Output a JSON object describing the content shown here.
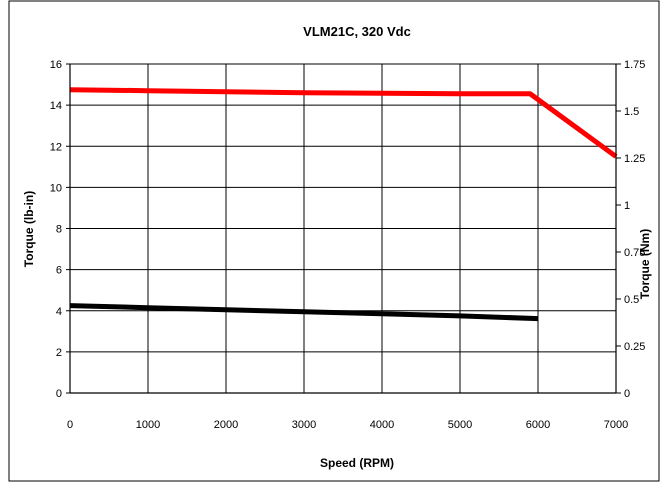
{
  "chart_data": {
    "type": "line",
    "title": "VLM21C, 320 Vdc",
    "xlabel": "Speed  (RPM)",
    "ylabel": "Torque (lb-in)",
    "y2label": "Torque (Nm)",
    "xlim": [
      0,
      7000
    ],
    "ylim": [
      0,
      16
    ],
    "y2lim": [
      0,
      1.75
    ],
    "x_ticks": [
      "0",
      "1000",
      "2000",
      "3000",
      "4000",
      "5000",
      "6000",
      "7000"
    ],
    "y_ticks": [
      "0",
      "2",
      "4",
      "6",
      "8",
      "10",
      "12",
      "14",
      "16"
    ],
    "y2_ticks": [
      "0",
      "0.25",
      "0.5",
      "0.75",
      "1",
      "1.25",
      "1.5",
      "1.75"
    ],
    "grid": true,
    "series": [
      {
        "color": "#ff0000",
        "x": [
          0,
          1000,
          2000,
          3000,
          4000,
          5000,
          5900,
          7000
        ],
        "y": [
          14.75,
          14.7,
          14.65,
          14.6,
          14.58,
          14.55,
          14.55,
          11.5
        ]
      },
      {
        "color": "#000000",
        "x": [
          0,
          1000,
          2000,
          3000,
          4000,
          5000,
          6000
        ],
        "y": [
          4.25,
          4.15,
          4.05,
          3.95,
          3.85,
          3.75,
          3.62
        ]
      }
    ]
  }
}
